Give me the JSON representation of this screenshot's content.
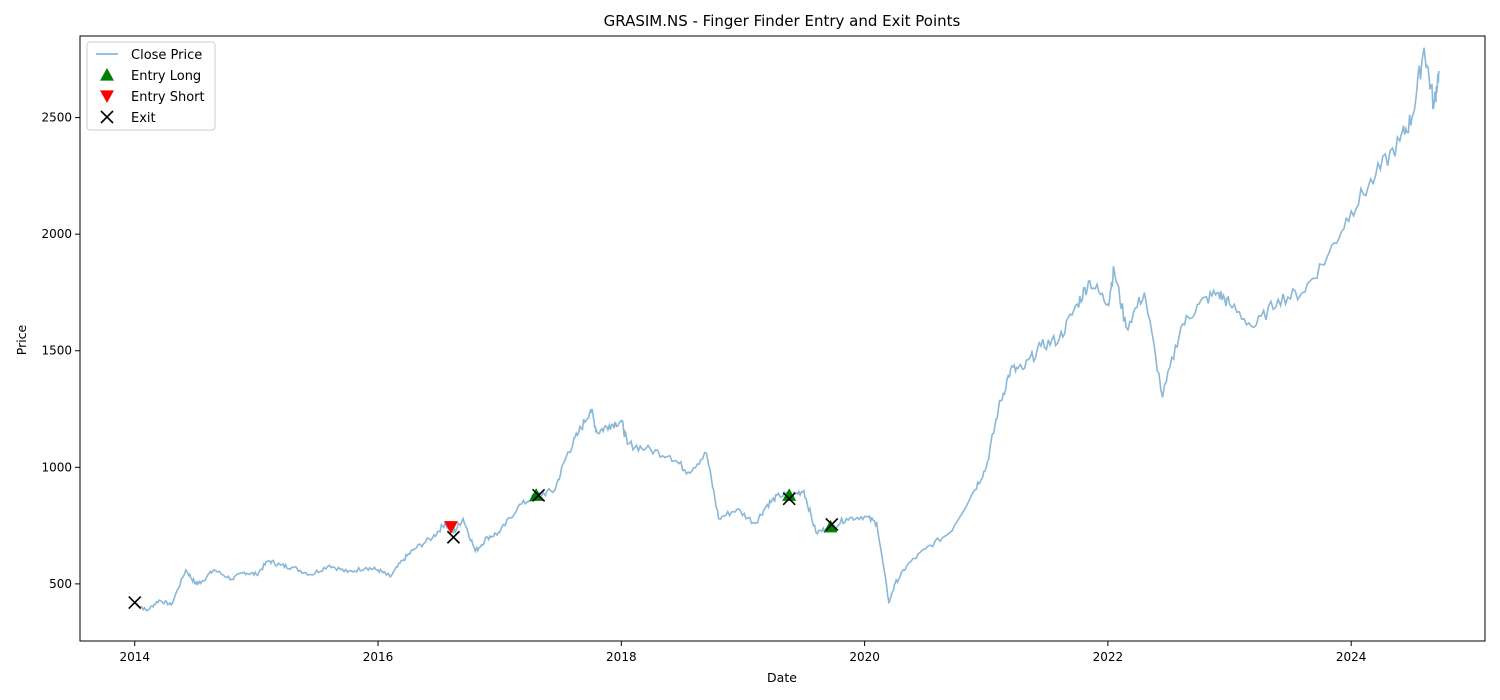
{
  "chart_data": {
    "type": "line",
    "title": "GRASIM.NS - Finger Finder Entry and Exit Points",
    "xlabel": "Date",
    "ylabel": "Price",
    "xlim": [
      2013.55,
      2025.1
    ],
    "ylim": [
      255,
      2850
    ],
    "x_ticks": [
      2014,
      2016,
      2018,
      2020,
      2022,
      2024
    ],
    "x_tick_labels": [
      "2014",
      "2016",
      "2018",
      "2020",
      "2022",
      "2024"
    ],
    "y_ticks": [
      500,
      1000,
      1500,
      2000,
      2500
    ],
    "y_tick_labels": [
      "500",
      "1000",
      "1500",
      "2000",
      "2500"
    ],
    "grid": false,
    "legend_position": "top-left",
    "colors": {
      "close_price": "#8ab8d8",
      "entry_long": "#008000",
      "entry_short": "#ff0000",
      "exit": "#000000"
    },
    "series": [
      {
        "name": "Close Price",
        "kind": "line",
        "x": [
          2014.0,
          2014.1,
          2014.2,
          2014.3,
          2014.42,
          2014.5,
          2014.55,
          2014.65,
          2014.8,
          2014.9,
          2015.0,
          2015.1,
          2015.2,
          2015.3,
          2015.45,
          2015.6,
          2015.75,
          2015.9,
          2016.0,
          2016.1,
          2016.2,
          2016.3,
          2016.45,
          2016.55,
          2016.62,
          2016.7,
          2016.8,
          2016.9,
          2017.0,
          2017.15,
          2017.3,
          2017.45,
          2017.55,
          2017.65,
          2017.75,
          2017.8,
          2017.9,
          2018.0,
          2018.05,
          2018.2,
          2018.4,
          2018.55,
          2018.7,
          2018.8,
          2018.95,
          2019.1,
          2019.2,
          2019.3,
          2019.4,
          2019.5,
          2019.6,
          2019.72,
          2019.85,
          2020.0,
          2020.1,
          2020.2,
          2020.25,
          2020.35,
          2020.5,
          2020.7,
          2020.9,
          2021.0,
          2021.1,
          2021.2,
          2021.3,
          2021.45,
          2021.6,
          2021.75,
          2021.85,
          2022.0,
          2022.05,
          2022.15,
          2022.3,
          2022.45,
          2022.6,
          2022.75,
          2022.9,
          2023.0,
          2023.2,
          2023.4,
          2023.6,
          2023.8,
          2024.0,
          2024.2,
          2024.4,
          2024.5,
          2024.6,
          2024.68,
          2024.72
        ],
        "values": [
          420,
          385,
          430,
          410,
          560,
          500,
          510,
          560,
          520,
          550,
          540,
          600,
          580,
          570,
          540,
          580,
          550,
          570,
          560,
          530,
          600,
          650,
          700,
          760,
          720,
          780,
          640,
          700,
          720,
          830,
          880,
          900,
          1050,
          1150,
          1250,
          1150,
          1180,
          1200,
          1100,
          1080,
          1050,
          980,
          1060,
          780,
          820,
          760,
          840,
          880,
          880,
          900,
          720,
          740,
          780,
          790,
          760,
          420,
          500,
          580,
          650,
          720,
          900,
          1000,
          1250,
          1420,
          1420,
          1520,
          1550,
          1700,
          1800,
          1700,
          1850,
          1600,
          1750,
          1300,
          1600,
          1700,
          1750,
          1700,
          1600,
          1720,
          1750,
          1900,
          2100,
          2250,
          2400,
          2500,
          2800,
          2550,
          2700
        ]
      },
      {
        "name": "Entry Long",
        "kind": "scatter",
        "marker": "triangle-up",
        "x": [
          2017.3,
          2019.38,
          2019.72
        ],
        "values": [
          880,
          880,
          745
        ]
      },
      {
        "name": "Entry Short",
        "kind": "scatter",
        "marker": "triangle-down",
        "x": [
          2016.6
        ],
        "values": [
          745
        ]
      },
      {
        "name": "Exit",
        "kind": "scatter",
        "marker": "x",
        "x": [
          2014.0,
          2016.62,
          2017.32,
          2019.38,
          2019.73
        ],
        "values": [
          420,
          700,
          880,
          865,
          755
        ]
      }
    ]
  }
}
